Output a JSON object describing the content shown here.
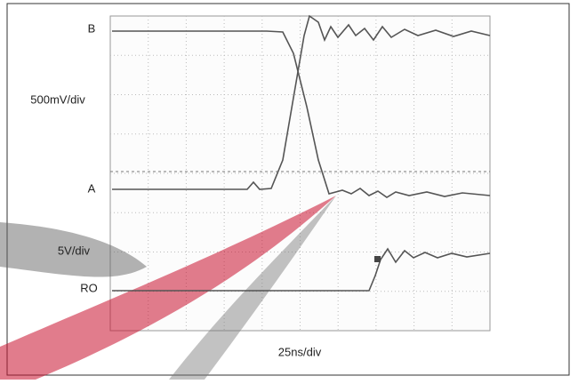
{
  "labels": {
    "b": "B",
    "volts_top": "500mV/div",
    "a": "A",
    "volts_bottom": "5V/div",
    "ro": "RO",
    "time": "25ns/div"
  }
}
